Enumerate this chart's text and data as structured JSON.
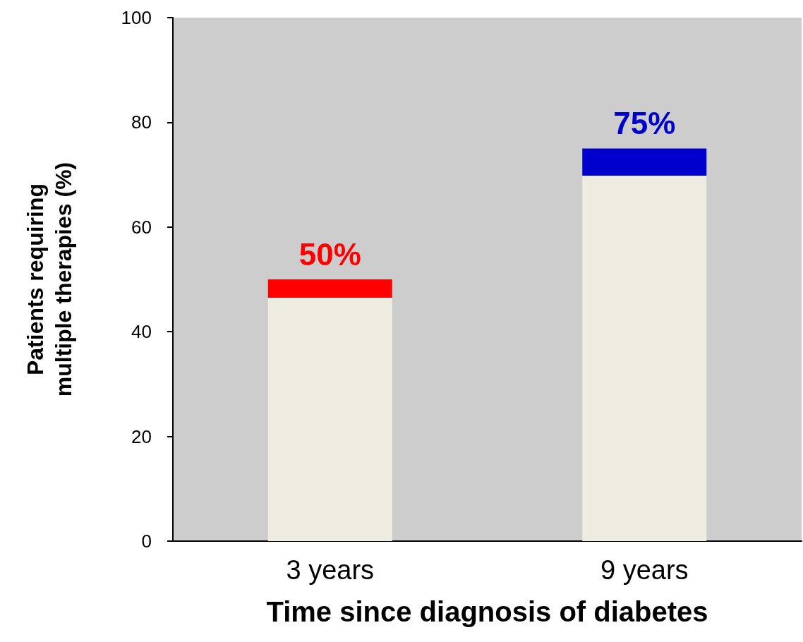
{
  "chart_data": {
    "type": "bar",
    "xlabel": "Time since diagnosis of diabetes",
    "ylabel": "Patients requiring\nmultiple therapies (%)",
    "categories": [
      "3 years",
      "9 years"
    ],
    "values": [
      50,
      75
    ],
    "colors": [
      "#ff0000",
      "#0000cc"
    ],
    "value_labels": [
      "50%",
      "75%"
    ],
    "ylim": [
      0,
      100
    ],
    "yticks": [
      0,
      20,
      40,
      60,
      80,
      100
    ],
    "grid": false
  }
}
